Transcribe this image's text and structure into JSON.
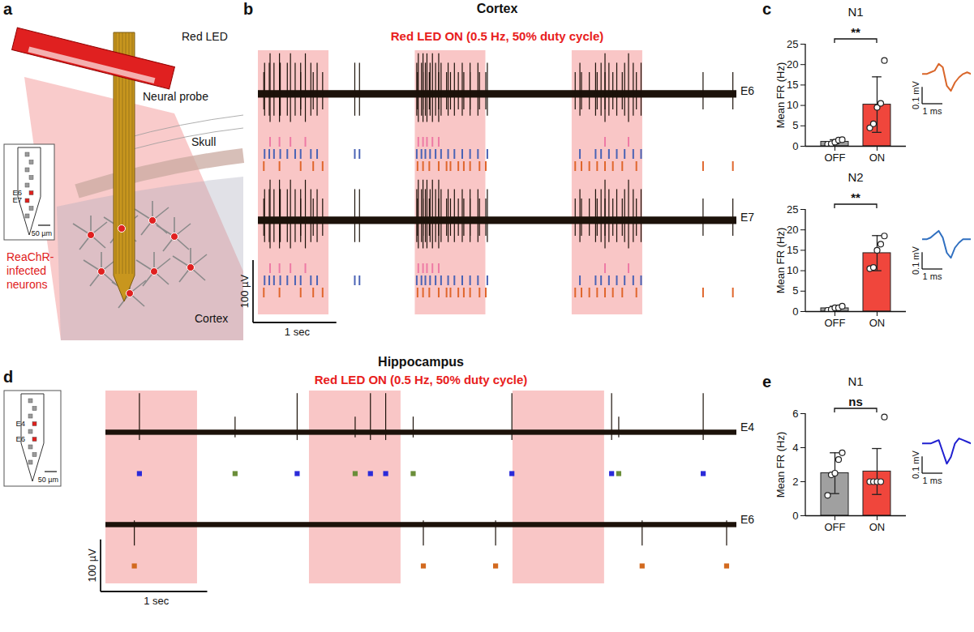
{
  "diagram": {
    "panel": "a",
    "labels": {
      "led": "Red LED",
      "probe": "Neural probe",
      "skull": "Skull",
      "neurons": "ReaChR-infected neurons",
      "region": "Cortex"
    },
    "inset": {
      "electrodes": [
        "E6",
        "E7"
      ],
      "scale_label": "50 µm"
    }
  },
  "chart_data": [
    {
      "panel": "b",
      "type": "raster",
      "title": "Cortex",
      "subtitle": "Red LED ON (0.5 Hz, 50% duty cycle)",
      "xlim": [
        0,
        6.1
      ],
      "ylim": [
        -60,
        70
      ],
      "tick_labels": false,
      "marker": "tick",
      "led_on": [
        [
          0,
          0.9
        ],
        [
          2,
          2.9
        ],
        [
          4,
          4.9
        ]
      ],
      "electrodes": [
        "E6",
        "E7"
      ],
      "noise_uV": 6,
      "units": [
        {
          "color": "#ee7aa5",
          "electrodes": [
            "E6",
            "E7"
          ],
          "spike_range": [
            -45,
            65
          ],
          "times": [
            0.15,
            0.27,
            0.41,
            0.6,
            2.04,
            2.1,
            2.15,
            2.22,
            2.3,
            4.42,
            4.72
          ]
        },
        {
          "color": "#4a63b5",
          "electrodes": [
            "E6",
            "E7"
          ],
          "spike_range": [
            -35,
            50
          ],
          "times": [
            0.08,
            0.14,
            0.2,
            0.28,
            0.37,
            0.47,
            0.54,
            0.67,
            0.75,
            1.23,
            1.29,
            2.02,
            2.08,
            2.13,
            2.19,
            2.26,
            2.33,
            2.42,
            2.5,
            2.6,
            2.7,
            2.8,
            2.92,
            4.1,
            4.3,
            4.37,
            4.47,
            4.57,
            4.67,
            4.78,
            4.88
          ]
        },
        {
          "color": "#e0662c",
          "electrodes": [
            "E6",
            "E7"
          ],
          "spike_range": [
            -25,
            35
          ],
          "times": [
            0.07,
            0.27,
            0.54,
            0.7,
            0.82,
            2.03,
            2.1,
            2.18,
            2.3,
            2.4,
            2.45,
            2.55,
            2.62,
            2.7,
            2.82,
            2.9,
            4.04,
            4.12,
            4.22,
            4.32,
            4.42,
            4.52,
            4.64,
            4.82,
            5.67,
            6.05
          ]
        }
      ],
      "scale_bars": {
        "x": 1,
        "x_label": "1 sec",
        "y": 100,
        "y_label": "100 µV"
      }
    },
    {
      "panel": "c",
      "type": "bar",
      "title": "N1",
      "ylabel": "Mean FR (Hz)",
      "categories": [
        "OFF",
        "ON"
      ],
      "values": [
        1.1,
        10.2
      ],
      "sd": [
        0.5,
        6.8
      ],
      "points": [
        [
          0.5,
          0.6,
          1.0,
          1.5,
          1.6
        ],
        [
          4.5,
          5.5,
          9.5,
          10.5,
          21
        ]
      ],
      "colors": [
        "#a0a0a0",
        "#f0463c"
      ],
      "ylim": [
        0,
        25
      ],
      "yticks": [
        0,
        5,
        10,
        15,
        20,
        25
      ],
      "significance": "**",
      "waveform": {
        "color": "#d9662a",
        "xlim": [
          0,
          2.4
        ],
        "ylim": [
          -0.14,
          0.1
        ],
        "t_ms": [
          0,
          0.2,
          0.4,
          0.6,
          0.8,
          1.0,
          1.2,
          1.4,
          1.6,
          1.8,
          2.0,
          2.2,
          2.4
        ],
        "mV": [
          0,
          0,
          0.01,
          0.02,
          0.06,
          0.04,
          -0.07,
          -0.1,
          -0.05,
          -0.02,
          0,
          0.01,
          0
        ],
        "scale_x": 1,
        "scale_x_label": "1 ms",
        "scale_y": 0.1,
        "scale_y_label": "0.1 mV"
      }
    },
    {
      "panel": "c",
      "type": "bar",
      "title": "N2",
      "ylabel": "Mean FR (Hz)",
      "categories": [
        "OFF",
        "ON"
      ],
      "values": [
        0.8,
        14.3
      ],
      "sd": [
        0.5,
        4.3
      ],
      "points": [
        [
          0.3,
          0.5,
          0.9,
          0.9,
          1.3
        ],
        [
          10.5,
          10.8,
          15,
          16.5,
          18.5
        ]
      ],
      "colors": [
        "#a0a0a0",
        "#f0463c"
      ],
      "ylim": [
        0,
        25
      ],
      "yticks": [
        0,
        5,
        10,
        15,
        20,
        25
      ],
      "significance": "**",
      "waveform": {
        "color": "#2f6fc0",
        "xlim": [
          0,
          2.4
        ],
        "ylim": [
          -0.14,
          0.1
        ],
        "t_ms": [
          0,
          0.2,
          0.4,
          0.6,
          0.8,
          1.0,
          1.2,
          1.4,
          1.6,
          1.8,
          2.0,
          2.2,
          2.4
        ],
        "mV": [
          0,
          0,
          0.01,
          0.03,
          0.05,
          0.01,
          -0.08,
          -0.11,
          -0.05,
          -0.02,
          0,
          0,
          0
        ],
        "scale_x": 1,
        "scale_x_label": "1 ms",
        "scale_y": 0.1,
        "scale_y_label": "0.1 mV"
      }
    },
    {
      "panel": "d",
      "type": "raster",
      "title": "Hippocampus",
      "subtitle": "Red LED ON (0.5 Hz, 50% duty cycle)",
      "xlim": [
        0,
        6.2
      ],
      "ylim": [
        -60,
        80
      ],
      "tick_labels": false,
      "marker": "square",
      "led_on": [
        [
          0,
          0.9
        ],
        [
          2,
          2.9
        ],
        [
          4,
          4.9
        ]
      ],
      "electrodes": [
        "E4",
        "E6"
      ],
      "noise_uV": 5,
      "units": [
        {
          "color": "#2b2bd9",
          "electrodes": [
            "E4"
          ],
          "spike_range": [
            -15,
            75
          ],
          "times": [
            0.33,
            1.88,
            2.6,
            2.75,
            3.99,
            4.97,
            5.87
          ]
        },
        {
          "color": "#6b8e3a",
          "electrodes": [
            "E4"
          ],
          "spike_range": [
            -10,
            30
          ],
          "times": [
            1.27,
            2.45,
            3.02,
            5.04
          ]
        },
        {
          "color": "#d2691e",
          "electrodes": [
            "E6"
          ],
          "spike_range": [
            -40,
            8
          ],
          "times": [
            0.28,
            3.12,
            3.83,
            5.27,
            6.1
          ]
        }
      ],
      "probe_inset": {
        "electrodes": [
          "E4",
          "E6"
        ],
        "scale_label": "50 µm"
      },
      "scale_bars": {
        "x": 1,
        "x_label": "1 sec",
        "y": 100,
        "y_label": "100 µV"
      }
    },
    {
      "panel": "e",
      "type": "bar",
      "title": "N1",
      "ylabel": "Mean FR (Hz)",
      "categories": [
        "OFF",
        "ON"
      ],
      "values": [
        2.5,
        2.6
      ],
      "sd": [
        1.2,
        1.35
      ],
      "points": [
        [
          1.2,
          2.4,
          2.5,
          3.3,
          3.7
        ],
        [
          2,
          2,
          2,
          2,
          5.8
        ]
      ],
      "colors": [
        "#a0a0a0",
        "#f0463c"
      ],
      "ylim": [
        0,
        6
      ],
      "yticks": [
        0,
        2,
        4,
        6
      ],
      "significance": "ns",
      "waveform": {
        "color": "#2020d0",
        "xlim": [
          0,
          2.4
        ],
        "ylim": [
          -0.14,
          0.1
        ],
        "t_ms": [
          0,
          0.2,
          0.4,
          0.6,
          0.8,
          1.0,
          1.2,
          1.4,
          1.6,
          1.8,
          2.0,
          2.2,
          2.4
        ],
        "mV": [
          0,
          0,
          0,
          0.01,
          0.02,
          -0.05,
          -0.12,
          -0.08,
          0,
          0.03,
          0.02,
          0.01,
          0
        ],
        "scale_x": 1,
        "scale_x_label": "1 ms",
        "scale_y": 0.1,
        "scale_y_label": "0.1 mV"
      }
    }
  ]
}
